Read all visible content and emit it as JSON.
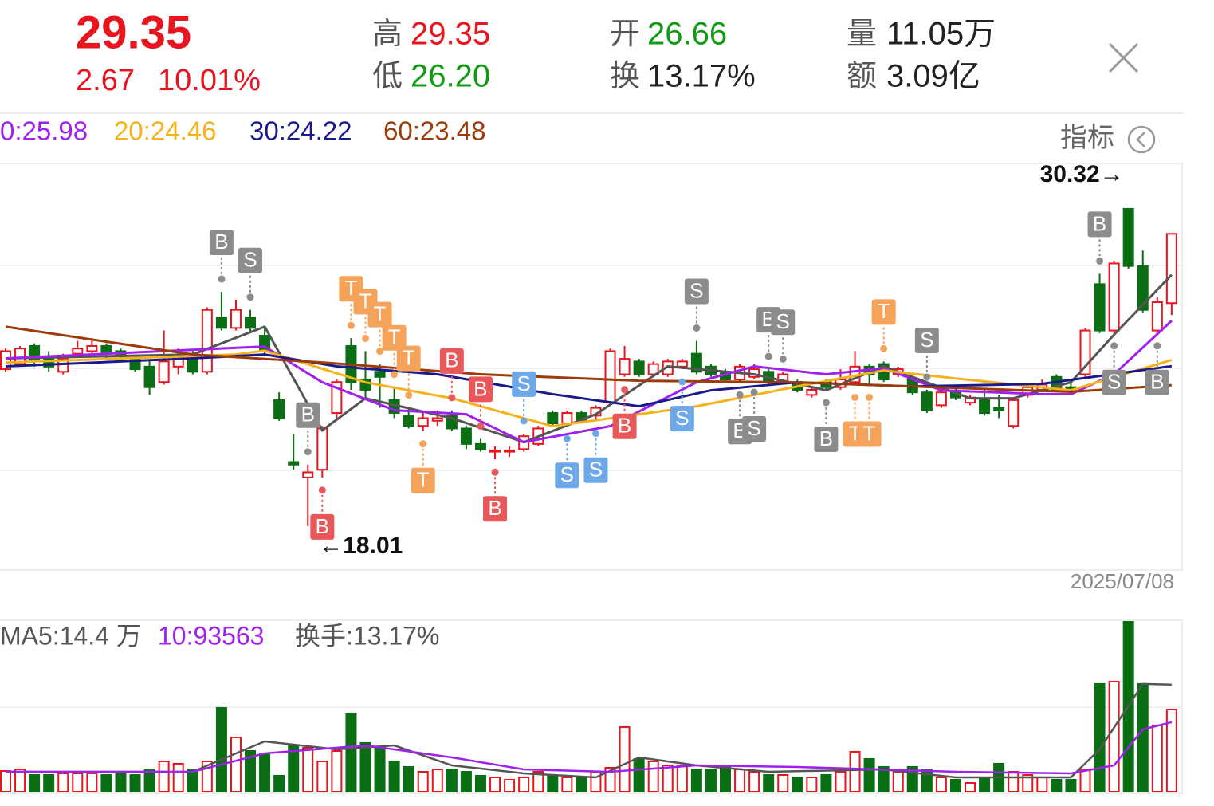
{
  "header": {
    "price": "29.35",
    "change": "2.67",
    "change_pct": "10.01%",
    "stats": [
      {
        "label": "高",
        "value": "29.35"
      },
      {
        "label": "低",
        "value": "26.20"
      },
      {
        "label": "开",
        "value": "26.66"
      },
      {
        "label": "换",
        "value": "13.17%"
      },
      {
        "label": "量",
        "value": "11.05万"
      },
      {
        "label": "额",
        "value": "3.09亿"
      }
    ]
  },
  "indicator_button": "指标",
  "chart_data": [
    {
      "type": "candlestick",
      "categories": [
        null,
        null,
        null,
        null,
        null,
        null,
        null,
        null,
        null,
        null,
        null,
        null,
        null,
        null,
        null,
        null,
        null,
        null,
        null,
        null,
        null,
        null,
        null,
        null,
        null,
        null,
        null,
        null,
        null,
        null,
        null,
        null,
        null,
        null,
        null,
        null,
        null,
        null,
        null,
        null,
        null,
        null,
        null,
        null,
        null,
        null,
        null,
        null,
        null,
        null,
        null,
        null,
        null,
        null,
        null,
        null,
        null,
        null,
        null,
        null,
        null,
        null,
        null,
        null,
        null,
        null,
        null,
        null,
        null,
        null,
        null,
        null,
        null,
        null,
        null,
        null,
        null,
        null,
        null,
        null,
        null,
        "2025/07/08"
      ],
      "open": [
        24.1,
        24.3,
        25.0,
        24.6,
        24.0,
        24.7,
        24.8,
        25.0,
        24.8,
        24.5,
        24.2,
        23.6,
        24.2,
        24.5,
        24.0,
        26.1,
        25.7,
        26.1,
        25.4,
        22.9,
        20.5,
        19.9,
        20.2,
        22.4,
        25.0,
        23.7,
        24.0,
        22.9,
        22.3,
        21.9,
        22.1,
        22.3,
        21.8,
        21.2,
        20.9,
        20.9,
        21.0,
        21.2,
        22.4,
        22.0,
        22.4,
        22.3,
        22.8,
        23.9,
        24.4,
        23.9,
        23.9,
        24.2,
        24.7,
        24.2,
        24.0,
        23.7,
        23.8,
        24.0,
        23.6,
        23.6,
        23.1,
        23.6,
        23.4,
        23.6,
        24.2,
        24.3,
        23.9,
        23.7,
        23.2,
        22.7,
        23.2,
        22.8,
        22.9,
        22.6,
        21.9,
        23.1,
        23.3,
        23.8,
        23.4,
        23.9,
        27.4,
        25.6,
        30.32,
        28.1,
        25.6,
        26.66
      ],
      "high": [
        24.9,
        25.0,
        25.1,
        24.8,
        24.7,
        25.2,
        25.3,
        25.1,
        24.9,
        24.6,
        24.4,
        25.6,
        24.9,
        24.8,
        26.5,
        27.1,
        26.8,
        26.4,
        25.7,
        23.2,
        21.6,
        20.4,
        21.9,
        23.7,
        25.3,
        24.8,
        24.3,
        23.4,
        22.6,
        22.4,
        22.5,
        22.5,
        21.9,
        21.4,
        21.1,
        21.1,
        21.6,
        21.9,
        22.5,
        22.5,
        22.5,
        22.7,
        24.9,
        25.0,
        24.5,
        24.4,
        24.5,
        24.5,
        25.2,
        24.3,
        24.1,
        24.3,
        24.3,
        24.1,
        24.0,
        23.7,
        23.4,
        23.7,
        24.1,
        24.8,
        24.3,
        24.4,
        24.2,
        23.8,
        23.3,
        23.4,
        23.5,
        23.1,
        23.3,
        23.1,
        23.0,
        23.5,
        23.7,
        23.9,
        23.6,
        25.7,
        27.8,
        28.3,
        30.32,
        28.7,
        26.9,
        29.35
      ],
      "low": [
        24.0,
        24.2,
        24.2,
        24.0,
        23.9,
        24.6,
        24.7,
        24.5,
        24.5,
        24.0,
        23.1,
        23.5,
        23.9,
        23.9,
        23.9,
        25.6,
        25.6,
        25.5,
        24.6,
        22.1,
        20.2,
        18.01,
        19.9,
        22.2,
        23.3,
        22.9,
        22.6,
        22.2,
        21.8,
        21.7,
        21.9,
        21.7,
        21.0,
        20.9,
        20.6,
        20.7,
        20.9,
        21.1,
        21.9,
        21.9,
        22.0,
        22.1,
        22.7,
        23.8,
        23.8,
        23.8,
        23.8,
        24.1,
        23.9,
        23.8,
        23.6,
        23.6,
        23.7,
        23.5,
        23.5,
        23.2,
        23.0,
        23.3,
        23.3,
        23.5,
        23.5,
        23.6,
        23.8,
        23.1,
        22.4,
        22.6,
        22.9,
        22.7,
        22.3,
        22.2,
        21.8,
        23.0,
        23.2,
        23.2,
        23.2,
        23.8,
        25.5,
        25.5,
        28.0,
        26.3,
        25.5,
        26.2
      ],
      "close": [
        24.8,
        24.9,
        24.4,
        24.2,
        24.5,
        24.9,
        25.0,
        24.7,
        24.6,
        24.1,
        23.4,
        24.4,
        24.6,
        24.0,
        26.4,
        25.7,
        26.4,
        25.7,
        24.8,
        22.2,
        20.4,
        20.1,
        21.8,
        23.6,
        23.6,
        23.3,
        23.8,
        22.4,
        21.9,
        22.2,
        22.2,
        21.8,
        21.2,
        21.0,
        20.95,
        20.95,
        21.5,
        21.8,
        22.0,
        22.4,
        22.1,
        22.6,
        24.8,
        24.5,
        23.9,
        24.3,
        24.4,
        24.4,
        24.0,
        23.9,
        23.7,
        24.2,
        24.1,
        23.6,
        23.9,
        23.3,
        23.3,
        23.4,
        23.7,
        24.2,
        23.9,
        23.7,
        24.1,
        23.2,
        22.5,
        23.2,
        23.0,
        23.0,
        22.4,
        22.5,
        22.9,
        23.4,
        23.5,
        23.3,
        23.3,
        25.6,
        25.6,
        28.2,
        28.1,
        26.4,
        26.7,
        29.35
      ],
      "up_color": "#e8141e",
      "down_color": "#0a6e14",
      "ylim": [
        16.31,
        32.08
      ],
      "series": [
        {
          "color": "#555555",
          "x": [
            0,
            13,
            18,
            22,
            25,
            31,
            36,
            41,
            46,
            52,
            57,
            61,
            67,
            70,
            74,
            77,
            81
          ],
          "values": [
            24.52,
            24.67,
            25.75,
            21.73,
            22.97,
            22.2,
            21.27,
            22.35,
            24.21,
            23.9,
            23.28,
            24.21,
            22.97,
            22.97,
            23.59,
            25.44,
            27.76
          ]
        },
        {
          "name": "0:25.98",
          "color": "#a020f0",
          "x": [
            0,
            18,
            22,
            27,
            32,
            36,
            42,
            48,
            52,
            57,
            61,
            65,
            72,
            74,
            77,
            81
          ],
          "values": [
            24.52,
            24.98,
            23.59,
            22.51,
            22.35,
            21.27,
            21.89,
            23.59,
            24.21,
            23.9,
            24.14,
            23.28,
            23.13,
            23.13,
            23.9,
            25.98
          ]
        },
        {
          "name": "20:24.46",
          "color": "#f5b21b",
          "x": [
            0,
            16,
            18,
            25,
            31,
            38,
            44,
            48,
            55,
            61,
            66,
            74,
            81
          ],
          "values": [
            24.36,
            24.67,
            24.82,
            23.59,
            22.97,
            21.89,
            22.35,
            22.66,
            23.43,
            24.05,
            23.74,
            23.28,
            24.46
          ]
        },
        {
          "name": "30:24.22",
          "color": "#1a1a8c",
          "x": [
            0,
            13,
            18,
            23,
            30,
            38,
            44,
            49,
            55,
            63,
            72,
            81
          ],
          "values": [
            24.21,
            24.52,
            24.67,
            24.21,
            23.9,
            23.13,
            22.66,
            23.28,
            23.59,
            23.43,
            23.53,
            24.22
          ]
        },
        {
          "name": "60:23.48",
          "color": "#9c3c0a",
          "x": [
            0,
            13,
            22,
            33,
            44,
            55,
            66,
            74,
            81
          ],
          "values": [
            25.75,
            24.67,
            24.36,
            23.9,
            23.65,
            23.59,
            23.37,
            23.22,
            23.48
          ]
        }
      ],
      "signals": [
        {
          "index": 15,
          "label": "B",
          "side": "up",
          "color": "#8c8c8c"
        },
        {
          "index": 17,
          "label": "S",
          "side": "up",
          "color": "#8c8c8c"
        },
        {
          "index": 21,
          "label": "B",
          "side": "up",
          "color": "#8c8c8c"
        },
        {
          "index": 22,
          "label": "B",
          "side": "down",
          "color": "#e8585a"
        },
        {
          "index": 24,
          "label": "T",
          "side": "up",
          "color": "#f5a35a"
        },
        {
          "index": 25,
          "label": "T",
          "side": "up",
          "color": "#f5a35a"
        },
        {
          "index": 26,
          "label": "T",
          "side": "up",
          "color": "#f5a35a"
        },
        {
          "index": 27,
          "label": "T",
          "side": "up",
          "color": "#f5a35a"
        },
        {
          "index": 28,
          "label": "T",
          "side": "up",
          "color": "#f5a35a"
        },
        {
          "index": 29,
          "label": "T",
          "side": "down",
          "color": "#f5a35a"
        },
        {
          "index": 31,
          "label": "B",
          "side": "up",
          "color": "#e8585a"
        },
        {
          "index": 33,
          "label": "B",
          "side": "up",
          "color": "#e8585a"
        },
        {
          "index": 34,
          "label": "B",
          "side": "down",
          "color": "#e8585a"
        },
        {
          "index": 36,
          "label": "S",
          "side": "up",
          "color": "#6fa8e8"
        },
        {
          "index": 39,
          "label": "S",
          "side": "down",
          "color": "#6fa8e8"
        },
        {
          "index": 41,
          "label": "S",
          "side": "down",
          "color": "#6fa8e8"
        },
        {
          "index": 43,
          "label": "B",
          "side": "down",
          "color": "#e8585a"
        },
        {
          "index": 47,
          "label": "S",
          "side": "down",
          "color": "#6fa8e8"
        },
        {
          "index": 48,
          "label": "S",
          "side": "up",
          "color": "#8c8c8c"
        },
        {
          "index": 51,
          "label": "B",
          "side": "down",
          "color": "#8c8c8c"
        },
        {
          "index": 52,
          "label": "S",
          "side": "down",
          "color": "#8c8c8c"
        },
        {
          "index": 53,
          "label": "B",
          "side": "up",
          "color": "#8c8c8c"
        },
        {
          "index": 54,
          "label": "S",
          "side": "up",
          "color": "#8c8c8c"
        },
        {
          "index": 57,
          "label": "B",
          "side": "down",
          "color": "#8c8c8c"
        },
        {
          "index": 59,
          "label": "T",
          "side": "down",
          "color": "#f5a35a"
        },
        {
          "index": 60,
          "label": "T",
          "side": "down",
          "color": "#f5a35a"
        },
        {
          "index": 61,
          "label": "T",
          "side": "up",
          "color": "#f5a35a"
        },
        {
          "index": 64,
          "label": "S",
          "side": "up",
          "color": "#8c8c8c"
        },
        {
          "index": 76,
          "label": "B",
          "side": "up",
          "color": "#8c8c8c"
        },
        {
          "index": 77,
          "label": "S",
          "side": "down",
          "color": "#8c8c8c"
        },
        {
          "index": 80,
          "label": "B",
          "side": "down",
          "color": "#8c8c8c"
        }
      ],
      "annotations": [
        {
          "text": "30.32→",
          "index": 78,
          "at": "high"
        },
        {
          "text": "←18.01",
          "index": 21,
          "at": "low"
        }
      ]
    },
    {
      "type": "bar",
      "values": [
        2.79,
        3.0,
        2.25,
        2.25,
        2.47,
        2.47,
        2.47,
        2.25,
        2.47,
        2.25,
        3.0,
        4.08,
        3.76,
        3.0,
        4.08,
        11.27,
        7.3,
        5.47,
        5.15,
        2.15,
        6.22,
        5.9,
        4.08,
        5.47,
        10.52,
        6.55,
        5.9,
        4.08,
        3.33,
        2.68,
        3.0,
        3.0,
        2.68,
        2.15,
        1.93,
        1.61,
        1.93,
        2.68,
        2.15,
        1.93,
        1.93,
        2.68,
        3.22,
        8.69,
        4.4,
        4.08,
        3.54,
        3.54,
        3.0,
        3.0,
        3.33,
        3.0,
        2.68,
        2.25,
        2.25,
        1.93,
        1.93,
        2.25,
        2.68,
        5.37,
        4.4,
        3.33,
        2.68,
        3.33,
        3.0,
        1.93,
        1.61,
        1.18,
        1.93,
        3.76,
        2.68,
        2.25,
        1.93,
        1.61,
        1.61,
        3.0,
        14.49,
        14.81,
        22.85,
        14.49,
        8.91,
        11.05
      ],
      "ylim": [
        0,
        22.85
      ],
      "series": [
        {
          "name": "MA5:14.4 万",
          "color": "#555555",
          "x": [
            0,
            13,
            16,
            18,
            23,
            27,
            31,
            36,
            41,
            44,
            48,
            53,
            61,
            66,
            74,
            76,
            79,
            81
          ],
          "values": [
            2.68,
            2.68,
            5.15,
            6.76,
            5.69,
            6.22,
            3.54,
            2.47,
            1.93,
            4.61,
            3.54,
            2.68,
            3.0,
            1.93,
            1.93,
            5.69,
            14.49,
            14.4
          ]
        },
        {
          "name": "10:93563",
          "color": "#a020f0",
          "x": [
            0,
            13,
            18,
            25,
            31,
            36,
            42,
            48,
            55,
            66,
            74,
            77,
            79,
            81
          ],
          "values": [
            2.68,
            2.68,
            5.15,
            6.22,
            4.61,
            3.0,
            2.68,
            3.54,
            3.33,
            2.68,
            2.47,
            3.54,
            8.37,
            9.3563
          ]
        }
      ],
      "label": "换手:13.17%"
    }
  ]
}
